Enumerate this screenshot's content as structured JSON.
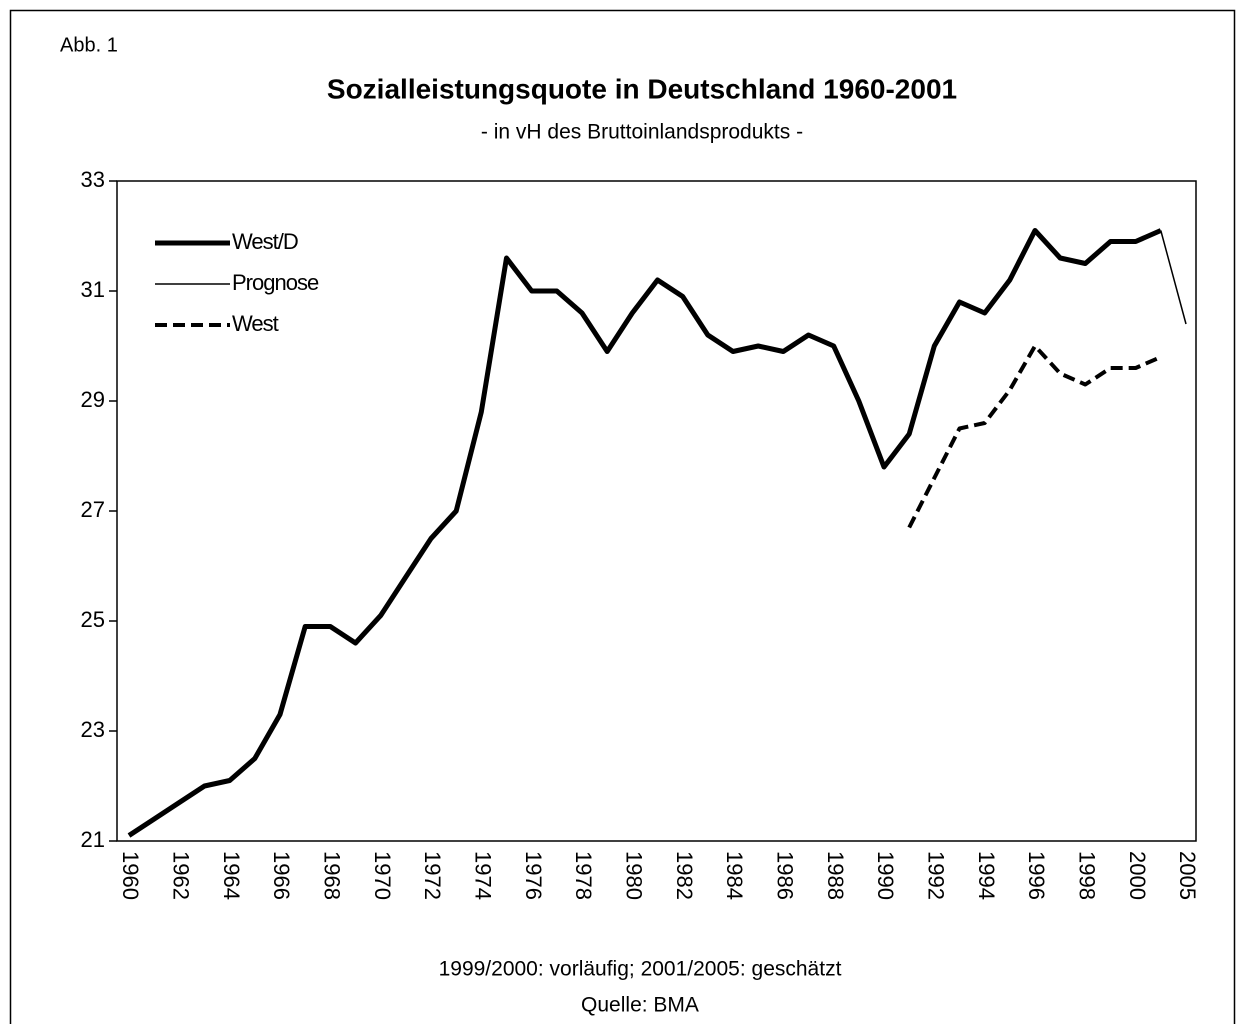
{
  "chart_data": {
    "type": "line",
    "label": "Abb. 1",
    "title": "Sozialleistungsquote in Deutschland 1960-2001",
    "subtitle": "- in vH des Bruttoinlandsprodukts -",
    "notes": [
      "1999/2000: vorläufig; 2001/2005: geschätzt",
      "Quelle: BMA"
    ],
    "categories": [
      "1960",
      null,
      "1962",
      null,
      "1964",
      null,
      "1966",
      null,
      "1968",
      null,
      "1970",
      null,
      "1972",
      null,
      "1974",
      null,
      "1976",
      null,
      "1978",
      null,
      "1980",
      null,
      "1982",
      null,
      "1984",
      null,
      "1986",
      null,
      "1988",
      null,
      "1990",
      null,
      "1992",
      null,
      "1994",
      null,
      "1996",
      null,
      "1998",
      null,
      "2000",
      null,
      "2005"
    ],
    "series": [
      {
        "name": "West/D",
        "color": "#000000",
        "line_style": "thick",
        "values": [
          21.1,
          21.4,
          21.7,
          22.0,
          22.1,
          22.5,
          23.3,
          24.9,
          24.9,
          24.6,
          25.1,
          25.8,
          26.5,
          27.0,
          28.8,
          31.6,
          31.0,
          31.0,
          30.6,
          29.9,
          30.6,
          31.2,
          30.9,
          30.2,
          29.9,
          30.0,
          29.9,
          30.2,
          30.0,
          29.0,
          27.8,
          28.4,
          30.0,
          30.8,
          30.6,
          31.2,
          32.1,
          31.6,
          31.5,
          31.9,
          31.9,
          32.1,
          null
        ]
      },
      {
        "name": "Prognose",
        "color": "#000000",
        "line_style": "thin",
        "values": [
          null,
          null,
          null,
          null,
          null,
          null,
          null,
          null,
          null,
          null,
          null,
          null,
          null,
          null,
          null,
          null,
          null,
          null,
          null,
          null,
          null,
          null,
          null,
          null,
          null,
          null,
          null,
          null,
          null,
          null,
          null,
          null,
          null,
          null,
          null,
          null,
          null,
          null,
          null,
          null,
          null,
          32.1,
          30.4
        ]
      },
      {
        "name": "West",
        "color": "#000000",
        "line_style": "dashed",
        "values": [
          null,
          null,
          null,
          null,
          null,
          null,
          null,
          null,
          null,
          null,
          null,
          null,
          null,
          null,
          null,
          null,
          null,
          null,
          null,
          null,
          null,
          null,
          null,
          null,
          null,
          null,
          null,
          null,
          null,
          null,
          null,
          26.7,
          27.6,
          28.5,
          28.6,
          29.2,
          30.0,
          29.5,
          29.3,
          29.6,
          29.6,
          29.8,
          null
        ]
      }
    ],
    "ylim": [
      21,
      33
    ],
    "yticks": [
      21,
      23,
      25,
      27,
      29,
      31,
      33
    ],
    "legend": "upper-left"
  }
}
